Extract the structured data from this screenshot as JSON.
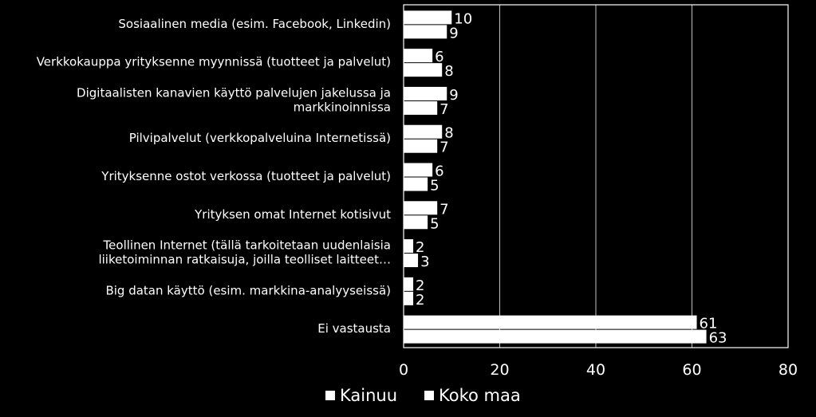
{
  "chart_data": {
    "type": "bar",
    "orientation": "horizontal",
    "categories": [
      [
        "Sosiaalinen media (esim. Facebook, Linkedin)"
      ],
      [
        "Verkkokauppa yrityksenne myynnissä (tuotteet ja palvelut)"
      ],
      [
        "Digitaalisten kanavien käyttö palvelujen jakelussa ja",
        "markkinoinnissa"
      ],
      [
        "Pilvipalvelut  (verkkopalveluina Internetissä)"
      ],
      [
        "Yrityksenne ostot verkossa (tuotteet ja palvelut)"
      ],
      [
        "Yrityksen omat Internet kotisivut"
      ],
      [
        "Teollinen Internet (tällä tarkoitetaan uudenlaisia",
        "liiketoiminnan ratkaisuja, joilla teolliset laitteet…"
      ],
      [
        "Big datan käyttö (esim. markkina-analyyseissä)"
      ],
      [
        "Ei vastausta"
      ]
    ],
    "series": [
      {
        "name": "Kainuu",
        "values": [
          10,
          6,
          9,
          8,
          6,
          7,
          2,
          2,
          61
        ]
      },
      {
        "name": "Koko maa",
        "values": [
          9,
          8,
          7,
          7,
          5,
          5,
          3,
          2,
          63
        ]
      }
    ],
    "xlim": [
      0,
      80
    ],
    "xticks": [
      "0",
      "20",
      "40",
      "60",
      "80"
    ],
    "grid": true,
    "legend": "bottom",
    "colors": {
      "background": "#000000",
      "bars": "#ffffff",
      "plot_border": "#ffffff",
      "grid": "#bfbfbf"
    }
  },
  "legend_labels": {
    "kainuu": "Kainuu",
    "koko_maa": "Koko maa"
  }
}
